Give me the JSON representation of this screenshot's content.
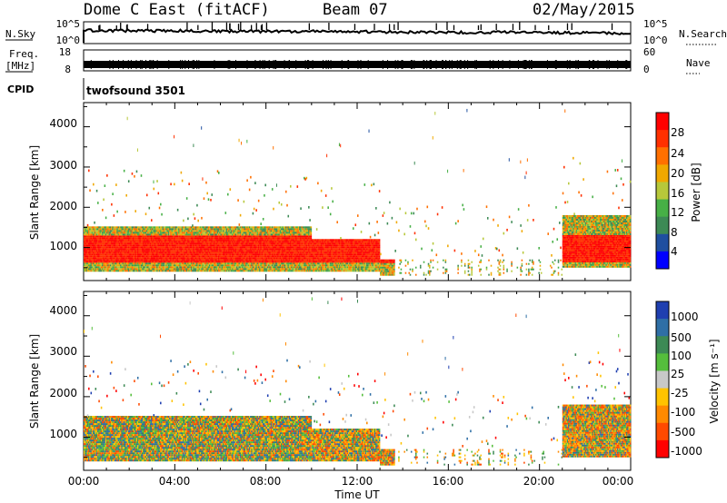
{
  "header": {
    "station": "Dome C East (fitACF)",
    "beam": "Beam 07",
    "date": "02/May/2015"
  },
  "status_panels": {
    "nsky_label": "N.Sky",
    "nsky_ticks": [
      "10^5",
      "10^0"
    ],
    "nsearch_label": "N.Search",
    "nsearch_ticks": [
      "10^5",
      "10^0"
    ],
    "freq_label_1": "Freq.",
    "freq_label_2": "[MHz]",
    "freq_ticks": [
      "18",
      "8"
    ],
    "nave_label": "Nave",
    "nave_ticks": [
      "60",
      "0"
    ],
    "cpid_label": "CPID",
    "cpid_value": "twofsound 3501"
  },
  "colors": {
    "power_scale": [
      "#0000ff",
      "#1f4fa0",
      "#3d8a55",
      "#47b046",
      "#b7c83a",
      "#f0a800",
      "#ff7000",
      "#ff3000",
      "#ff0000"
    ],
    "velocity_scale": [
      "#ff0000",
      "#ff4a00",
      "#ff8a00",
      "#ffc300",
      "#c8c8c8",
      "#55be3c",
      "#3d8a55",
      "#2f6fa6",
      "#1f3fb0"
    ]
  },
  "chart_data": [
    {
      "type": "heatmap",
      "name": "power",
      "ylabel": "Slant Range [km]",
      "yticks": [
        "4000",
        "3000",
        "2000",
        "1000"
      ],
      "ylim": [
        180,
        4600
      ],
      "xlim": [
        0,
        24
      ],
      "colorbar_label": "Power [dB]",
      "colorbar_ticks": [
        "28",
        "24",
        "20",
        "16",
        "12",
        "8",
        "4"
      ],
      "colorbar_range": [
        0,
        32
      ]
    },
    {
      "type": "heatmap",
      "name": "velocity",
      "ylabel": "Slant Range [km]",
      "yticks": [
        "4000",
        "3000",
        "2000",
        "1000"
      ],
      "ylim": [
        180,
        4600
      ],
      "xlim": [
        0,
        24
      ],
      "xlabel": "Time UT",
      "xticks": [
        "00:00",
        "04:00",
        "08:00",
        "12:00",
        "16:00",
        "20:00",
        "00:00"
      ],
      "colorbar_label": "Velocity [m s⁻¹]",
      "colorbar_ticks": [
        "1000",
        "500",
        "100",
        "25",
        "-25",
        "-100",
        "-500",
        "-1000"
      ]
    }
  ]
}
